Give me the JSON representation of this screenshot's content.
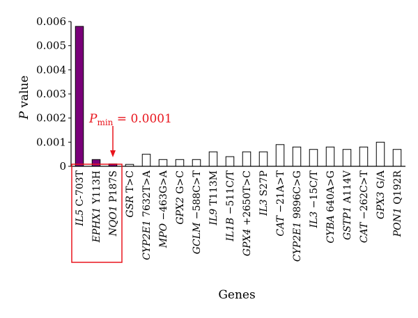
{
  "chart_data": {
    "type": "bar",
    "title": "",
    "xlabel": "Genes",
    "ylabel_italic": "P",
    "ylabel_rest": " value",
    "ylim": [
      0,
      0.006
    ],
    "yticks": [
      {
        "value": 0,
        "label": "0"
      },
      {
        "value": 0.001,
        "label": "0.001"
      },
      {
        "value": 0.002,
        "label": "0.002"
      },
      {
        "value": 0.003,
        "label": "0.003"
      },
      {
        "value": 0.004,
        "label": "0.004"
      },
      {
        "value": 0.005,
        "label": "0.005"
      },
      {
        "value": 0.006,
        "label": "0.006"
      }
    ],
    "grid": false,
    "legend": "none",
    "colors": {
      "highlight": "#7a007a",
      "plain": "#ffffff",
      "outline": "#000000",
      "annotation": "#e8141c"
    },
    "categories": [
      {
        "gene": "IL5",
        "variant": " C-703T",
        "value": 0.0058,
        "highlight": true
      },
      {
        "gene": "EPHX1",
        "variant": " Y113H",
        "value": 0.00028,
        "highlight": true
      },
      {
        "gene": "NQO1",
        "variant": " P187S",
        "value": 0.0001,
        "highlight": true
      },
      {
        "gene": "GSR",
        "variant": " T>C",
        "value": 8e-05,
        "highlight": false
      },
      {
        "gene": "CYP2E1",
        "variant": " 7632T>A",
        "value": 0.0005,
        "highlight": false
      },
      {
        "gene": "MPO",
        "variant": " −463G>A",
        "value": 0.00028,
        "highlight": false
      },
      {
        "gene": "GPX2",
        "variant": " G>C",
        "value": 0.00028,
        "highlight": false
      },
      {
        "gene": "GCLM",
        "variant": " −588C>T",
        "value": 0.00028,
        "highlight": false
      },
      {
        "gene": "IL9",
        "variant": " T113M",
        "value": 0.0006,
        "highlight": false
      },
      {
        "gene": "IL1B",
        "variant": " −511C/T",
        "value": 0.0004,
        "highlight": false
      },
      {
        "gene": "GPX4",
        "variant": " +2650T>C",
        "value": 0.0006,
        "highlight": false
      },
      {
        "gene": "IL3",
        "variant": " S27P",
        "value": 0.0006,
        "highlight": false
      },
      {
        "gene": "CAT",
        "variant": " −21A>T",
        "value": 0.0009,
        "highlight": false
      },
      {
        "gene": "CYP2E1",
        "variant": " 9896C>G",
        "value": 0.0008,
        "highlight": false
      },
      {
        "gene": "IL3",
        "variant": " −15C/T",
        "value": 0.0007,
        "highlight": false
      },
      {
        "gene": "CYBA",
        "variant": " 640A>G",
        "value": 0.0008,
        "highlight": false
      },
      {
        "gene": "GSTP1",
        "variant": " A114V",
        "value": 0.0007,
        "highlight": false
      },
      {
        "gene": "CAT",
        "variant": " −262C>T",
        "value": 0.0008,
        "highlight": false
      },
      {
        "gene": "GPX3",
        "variant": " G/A",
        "value": 0.001,
        "highlight": false
      },
      {
        "gene": "PON1",
        "variant": " Q192R",
        "value": 0.0007,
        "highlight": false
      }
    ],
    "annotation": {
      "label_italic": "P",
      "label_sub": "min",
      "label_rest": " = 0.0001",
      "target_index": 2,
      "box_first_index": 0,
      "box_last_index": 2
    }
  }
}
